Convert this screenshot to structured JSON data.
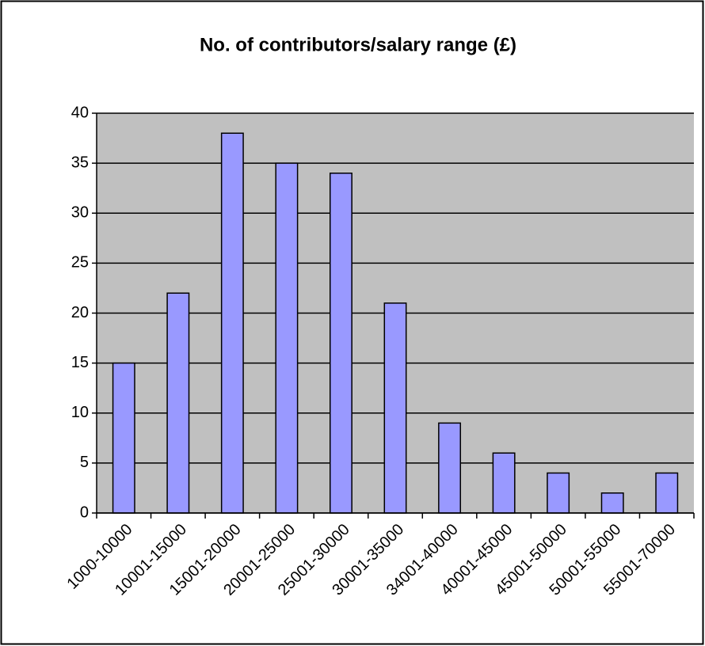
{
  "chart_data": {
    "type": "bar",
    "title": "No. of contributors/salary range (£)",
    "categories": [
      "1000-10000",
      "10001-15000",
      "15001-20000",
      "20001-25000",
      "25001-30000",
      "30001-35000",
      "34001-40000",
      "40001-45000",
      "45001-50000",
      "50001-55000",
      "55001-70000"
    ],
    "values": [
      15,
      22,
      38,
      35,
      34,
      21,
      9,
      6,
      4,
      2,
      4
    ],
    "color": "#9999ff",
    "ylim": [
      0,
      40
    ],
    "yticks": [
      0,
      5,
      10,
      15,
      20,
      25,
      30,
      35,
      40
    ],
    "grid": true
  }
}
